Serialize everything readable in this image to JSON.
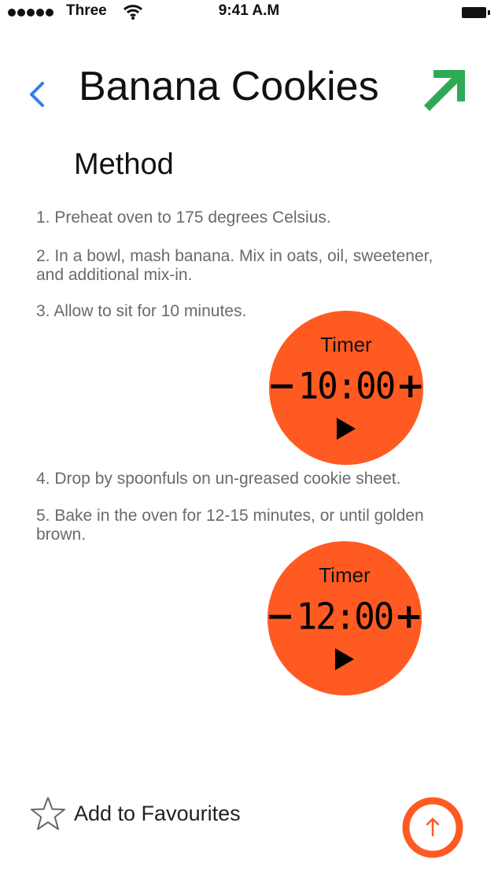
{
  "status_bar": {
    "carrier": "Three",
    "time": "9:41 A.M"
  },
  "header": {
    "title": "Banana Cookies",
    "back_icon": "chevron-left-icon",
    "share_icon": "arrow-up-right-icon",
    "back_color": "#2f80ed",
    "share_color": "#2eaa55"
  },
  "section_title": "Method",
  "steps": [
    "1. Preheat oven to 175 degrees Celsius.",
    "2. In a bowl, mash banana. Mix in oats, oil, sweetener, and additional mix-in.",
    "3. Allow to sit for 10 minutes.",
    "4. Drop by spoonfuls on un-greased cookie sheet.",
    "5. Bake in the oven for 12-15 minutes, or until golden brown."
  ],
  "timers": [
    {
      "label": "Timer",
      "time": "10:00",
      "minus": "−",
      "plus": "+"
    },
    {
      "label": "Timer",
      "time": "12:00",
      "minus": "−",
      "plus": "+"
    }
  ],
  "timer_color": "#ff5a22",
  "favourites_label": "Add to Favourites",
  "scroll_top_icon": "arrow-up-icon",
  "scroll_top_color": "#ff5a22"
}
